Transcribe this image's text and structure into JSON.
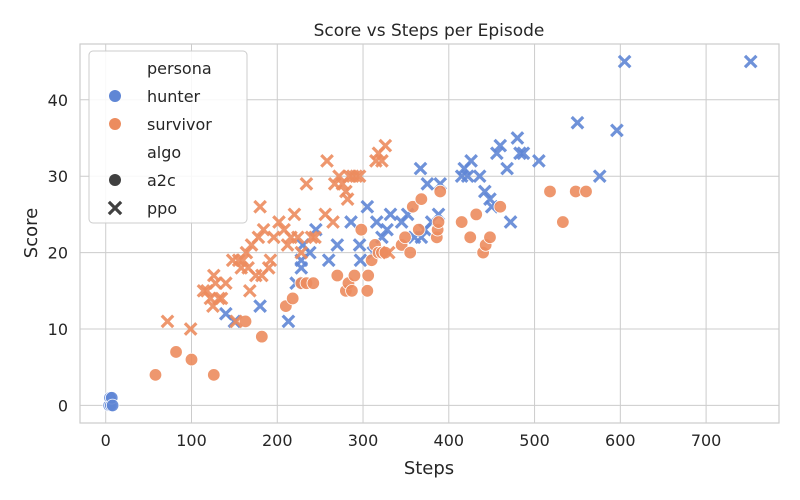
{
  "chart_data": {
    "type": "scatter",
    "title": "Score vs Steps per Episode",
    "xlabel": "Steps",
    "ylabel": "Score",
    "xlim": [
      -30,
      785
    ],
    "ylim": [
      -2.3,
      47.3
    ],
    "xticks": [
      0,
      100,
      200,
      300,
      400,
      500,
      600,
      700
    ],
    "yticks": [
      0,
      10,
      20,
      30,
      40
    ],
    "grid": true,
    "legend": {
      "position": "top-left",
      "hue_title": "persona",
      "style_title": "algo",
      "hue": [
        {
          "name": "hunter",
          "color": "#5f86d5"
        },
        {
          "name": "survivor",
          "color": "#ec8c5e"
        }
      ],
      "style": [
        {
          "name": "a2c",
          "marker": "circle"
        },
        {
          "name": "ppo",
          "marker": "x"
        }
      ]
    },
    "series": [
      {
        "persona": "hunter",
        "algo": "a2c",
        "color": "#5f86d5",
        "marker": "circle",
        "points": [
          [
            4,
            0
          ],
          [
            5,
            1
          ],
          [
            6,
            0
          ],
          [
            7,
            1
          ],
          [
            8,
            0
          ]
        ]
      },
      {
        "persona": "hunter",
        "algo": "ppo",
        "color": "#5f86d5",
        "marker": "x",
        "points": [
          [
            140,
            12
          ],
          [
            150,
            11
          ],
          [
            180,
            13
          ],
          [
            213,
            11
          ],
          [
            222,
            16
          ],
          [
            228,
            19
          ],
          [
            228,
            18
          ],
          [
            230,
            21
          ],
          [
            238,
            20
          ],
          [
            245,
            23
          ],
          [
            260,
            19
          ],
          [
            270,
            21
          ],
          [
            286,
            24
          ],
          [
            296,
            21
          ],
          [
            297,
            19
          ],
          [
            305,
            26
          ],
          [
            312,
            20
          ],
          [
            316,
            24
          ],
          [
            322,
            22
          ],
          [
            328,
            23
          ],
          [
            332,
            25
          ],
          [
            345,
            24
          ],
          [
            352,
            25
          ],
          [
            360,
            22
          ],
          [
            367,
            31
          ],
          [
            368,
            22
          ],
          [
            372,
            23
          ],
          [
            375,
            29
          ],
          [
            380,
            24
          ],
          [
            388,
            25
          ],
          [
            390,
            29
          ],
          [
            415,
            30
          ],
          [
            418,
            31
          ],
          [
            422,
            30
          ],
          [
            426,
            32
          ],
          [
            436,
            30
          ],
          [
            442,
            28
          ],
          [
            448,
            27
          ],
          [
            450,
            26
          ],
          [
            456,
            33
          ],
          [
            460,
            34
          ],
          [
            468,
            31
          ],
          [
            472,
            24
          ],
          [
            480,
            35
          ],
          [
            483,
            33
          ],
          [
            487,
            33
          ],
          [
            505,
            32
          ],
          [
            550,
            37
          ],
          [
            576,
            30
          ],
          [
            596,
            36
          ],
          [
            605,
            45
          ],
          [
            752,
            45
          ]
        ]
      },
      {
        "persona": "survivor",
        "algo": "a2c",
        "color": "#ec8c5e",
        "marker": "circle",
        "points": [
          [
            58,
            4
          ],
          [
            82,
            7
          ],
          [
            100,
            6
          ],
          [
            126,
            4
          ],
          [
            163,
            11
          ],
          [
            182,
            9
          ],
          [
            210,
            13
          ],
          [
            218,
            14
          ],
          [
            228,
            16
          ],
          [
            234,
            16
          ],
          [
            242,
            16
          ],
          [
            270,
            17
          ],
          [
            280,
            15
          ],
          [
            283,
            16
          ],
          [
            287,
            15
          ],
          [
            290,
            17
          ],
          [
            298,
            23
          ],
          [
            305,
            15
          ],
          [
            306,
            17
          ],
          [
            310,
            19
          ],
          [
            314,
            21
          ],
          [
            318,
            20
          ],
          [
            322,
            20
          ],
          [
            326,
            20
          ],
          [
            345,
            21
          ],
          [
            349,
            22
          ],
          [
            355,
            20
          ],
          [
            358,
            26
          ],
          [
            365,
            23
          ],
          [
            368,
            27
          ],
          [
            386,
            22
          ],
          [
            387,
            23
          ],
          [
            388,
            24
          ],
          [
            390,
            28
          ],
          [
            415,
            24
          ],
          [
            425,
            22
          ],
          [
            432,
            25
          ],
          [
            440,
            20
          ],
          [
            443,
            21
          ],
          [
            448,
            22
          ],
          [
            460,
            26
          ],
          [
            518,
            28
          ],
          [
            533,
            24
          ],
          [
            548,
            28
          ],
          [
            560,
            28
          ]
        ]
      },
      {
        "persona": "survivor",
        "algo": "ppo",
        "color": "#ec8c5e",
        "marker": "x",
        "points": [
          [
            72,
            11
          ],
          [
            99,
            10
          ],
          [
            114,
            15
          ],
          [
            118,
            15
          ],
          [
            122,
            14
          ],
          [
            125,
            13
          ],
          [
            126,
            17
          ],
          [
            128,
            16
          ],
          [
            132,
            14
          ],
          [
            135,
            14
          ],
          [
            140,
            16
          ],
          [
            148,
            19
          ],
          [
            152,
            11
          ],
          [
            155,
            19
          ],
          [
            158,
            18
          ],
          [
            160,
            19
          ],
          [
            164,
            20
          ],
          [
            166,
            18
          ],
          [
            168,
            15
          ],
          [
            170,
            21
          ],
          [
            175,
            17
          ],
          [
            178,
            22
          ],
          [
            180,
            26
          ],
          [
            182,
            17
          ],
          [
            184,
            23
          ],
          [
            190,
            18
          ],
          [
            192,
            19
          ],
          [
            196,
            22
          ],
          [
            202,
            24
          ],
          [
            208,
            23
          ],
          [
            212,
            21
          ],
          [
            216,
            22
          ],
          [
            220,
            25
          ],
          [
            224,
            22
          ],
          [
            228,
            20
          ],
          [
            234,
            29
          ],
          [
            240,
            22
          ],
          [
            244,
            22
          ],
          [
            256,
            25
          ],
          [
            258,
            32
          ],
          [
            265,
            24
          ],
          [
            267,
            29
          ],
          [
            272,
            30
          ],
          [
            276,
            29
          ],
          [
            280,
            28
          ],
          [
            282,
            27
          ],
          [
            284,
            30
          ],
          [
            288,
            30
          ],
          [
            292,
            30
          ],
          [
            296,
            30
          ],
          [
            315,
            32
          ],
          [
            318,
            33
          ],
          [
            322,
            32
          ],
          [
            326,
            34
          ],
          [
            330,
            20
          ]
        ]
      }
    ]
  }
}
